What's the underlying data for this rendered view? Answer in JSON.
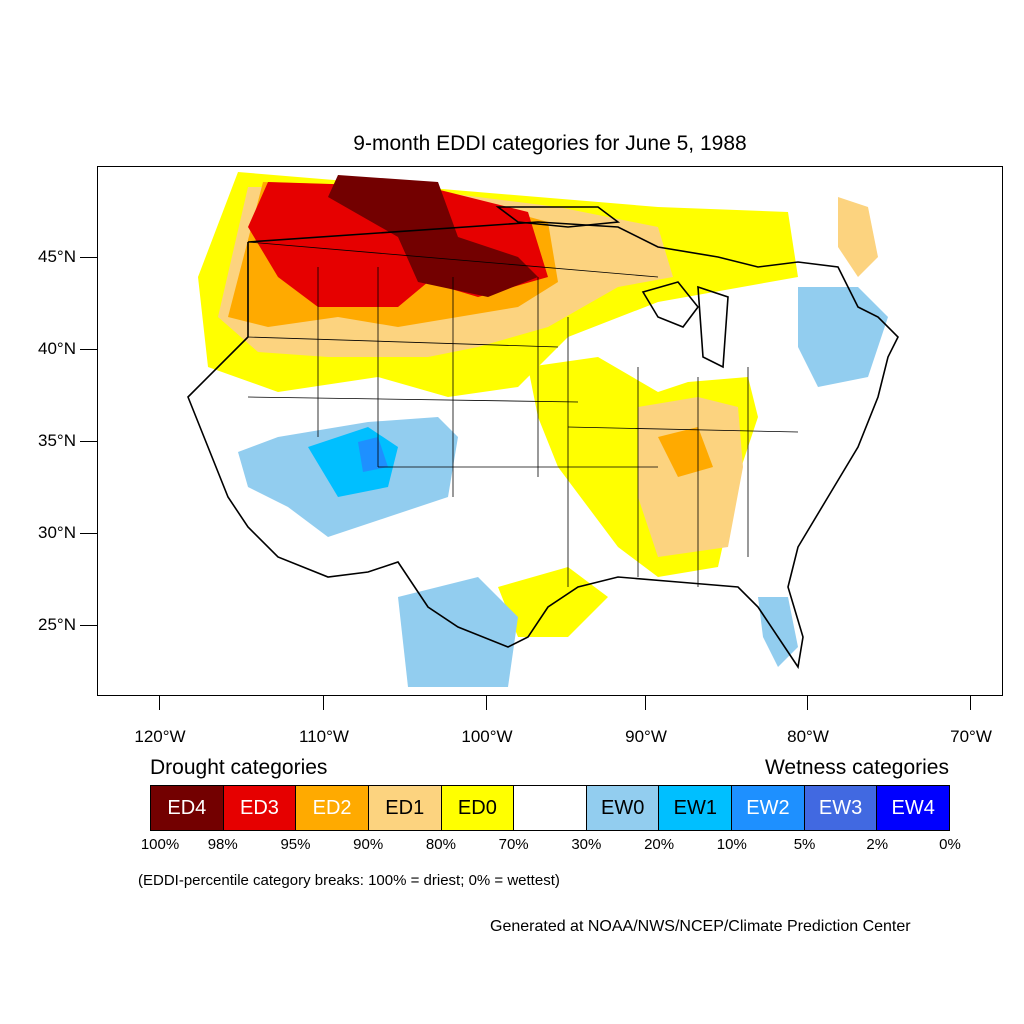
{
  "title": "9-month EDDI categories for June 5, 1988",
  "axes": {
    "latitude_labels": [
      "45°N",
      "40°N",
      "35°N",
      "30°N",
      "25°N"
    ],
    "longitude_labels": [
      "120°W",
      "110°W",
      "100°W",
      "90°W",
      "80°W",
      "70°W"
    ]
  },
  "legend": {
    "drought_heading": "Drought categories",
    "wetness_heading": "Wetness categories",
    "categories": [
      {
        "label": "ED4",
        "color": "#730000",
        "text_color": "#ffffff"
      },
      {
        "label": "ED3",
        "color": "#e60000",
        "text_color": "#ffffff"
      },
      {
        "label": "ED2",
        "color": "#ffaa00",
        "text_color": "#ffffff"
      },
      {
        "label": "ED1",
        "color": "#fcd37f",
        "text_color": "#000000"
      },
      {
        "label": "ED0",
        "color": "#ffff00",
        "text_color": "#000000"
      },
      {
        "label": "",
        "color": "#ffffff",
        "text_color": "#000000"
      },
      {
        "label": "EW0",
        "color": "#92cdef",
        "text_color": "#000000"
      },
      {
        "label": "EW1",
        "color": "#00bfff",
        "text_color": "#000000"
      },
      {
        "label": "EW2",
        "color": "#1e90ff",
        "text_color": "#ffffff"
      },
      {
        "label": "EW3",
        "color": "#4169e1",
        "text_color": "#ffffff"
      },
      {
        "label": "EW4",
        "color": "#0000ff",
        "text_color": "#ffffff"
      }
    ],
    "percent_breaks": [
      "100%",
      "98%",
      "95%",
      "90%",
      "80%",
      "70%",
      "30%",
      "20%",
      "10%",
      "5%",
      "2%",
      "0%"
    ]
  },
  "note": "(EDDI-percentile category breaks: 100% = driest; 0% = wettest)",
  "credit": "Generated at NOAA/NWS/NCEP/Climate Prediction Center"
}
